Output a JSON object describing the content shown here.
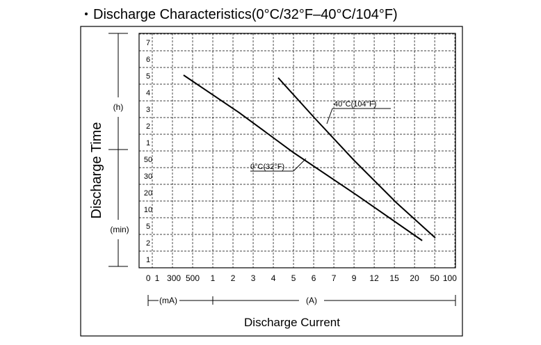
{
  "chart_data": {
    "type": "line",
    "title": "Discharge Characteristics(0°C/32°F–40°C/104°F)",
    "xlabel": "Discharge Current",
    "ylabel": "Discharge Time",
    "yunit_top": "(h)",
    "yunit_bottom": "(min)",
    "xunit_left": "(mA)",
    "xunit_right": "(A)",
    "xlim": [
      -0.655,
      15.03
    ],
    "ylim": [
      0,
      14.04
    ],
    "grid": true,
    "color": "#000000",
    "xticks": [
      {
        "value": -0.2,
        "label": "0"
      },
      {
        "value": 0.24,
        "label": "1"
      },
      {
        "value": 1.07,
        "label": "300"
      },
      {
        "value": 2,
        "label": "500"
      },
      {
        "value": 3,
        "label": "1"
      },
      {
        "value": 4,
        "label": "2"
      },
      {
        "value": 5,
        "label": "3"
      },
      {
        "value": 6,
        "label": "4"
      },
      {
        "value": 7,
        "label": "5"
      },
      {
        "value": 8,
        "label": "6"
      },
      {
        "value": 9,
        "label": "7"
      },
      {
        "value": 10,
        "label": "9"
      },
      {
        "value": 11,
        "label": "12"
      },
      {
        "value": 12,
        "label": "15"
      },
      {
        "value": 13,
        "label": "20"
      },
      {
        "value": 14,
        "label": "50"
      },
      {
        "value": 14.75,
        "label": "100"
      }
    ],
    "yticks": [
      {
        "value": 0.5,
        "label": "1"
      },
      {
        "value": 1.5,
        "label": "2"
      },
      {
        "value": 2.5,
        "label": "5"
      },
      {
        "value": 3.5,
        "label": "10"
      },
      {
        "value": 4.5,
        "label": "20"
      },
      {
        "value": 5.5,
        "label": "30"
      },
      {
        "value": 6.5,
        "label": "50"
      },
      {
        "value": 7.5,
        "label": "1"
      },
      {
        "value": 8.5,
        "label": "2"
      },
      {
        "value": 9.5,
        "label": "3"
      },
      {
        "value": 10.5,
        "label": "4"
      },
      {
        "value": 11.5,
        "label": "5"
      },
      {
        "value": 12.5,
        "label": "6"
      },
      {
        "value": 13.5,
        "label": "7"
      }
    ],
    "series": [
      {
        "name": "0°C(32°F)",
        "x": [
          1.55,
          4.3,
          7.0,
          10.2,
          13.38
        ],
        "values": [
          11.54,
          9.3,
          6.9,
          4.3,
          1.63
        ]
      },
      {
        "name": "40°C(104°F)",
        "x": [
          6.24,
          8.1,
          10.03,
          12.1,
          14.03
        ],
        "values": [
          11.38,
          8.9,
          6.4,
          3.9,
          1.79
        ]
      }
    ]
  }
}
